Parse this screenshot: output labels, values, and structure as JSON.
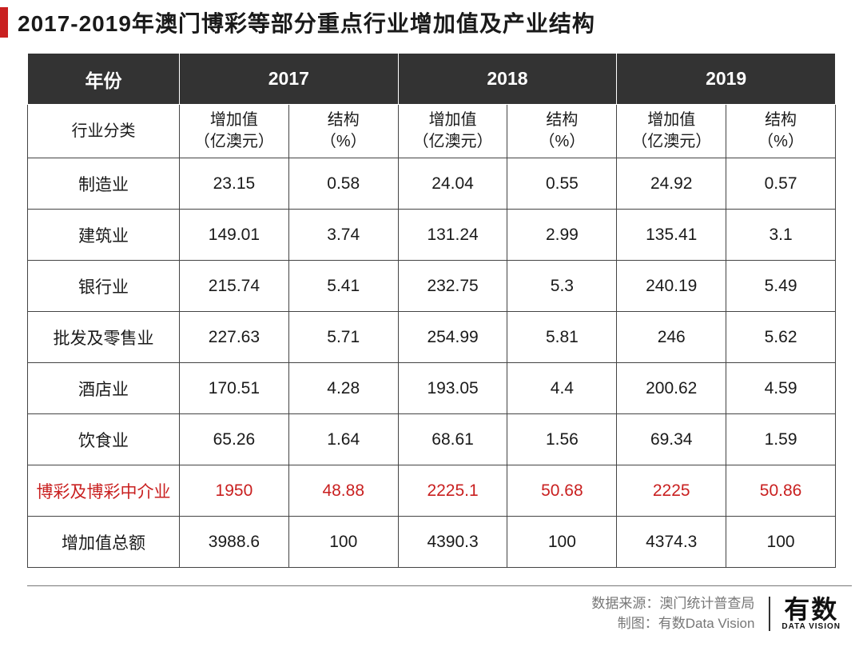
{
  "title": "2017-2019年澳门博彩等部分重点行业增加值及产业结构",
  "table": {
    "type": "table",
    "highlight_row_index": 6,
    "highlight_color": "#c92020",
    "header_bg": "#333333",
    "header_fg": "#ffffff",
    "border_color": "#444444",
    "font_size_body": 21,
    "font_size_header": 23,
    "year_header_label": "年份",
    "years": [
      "2017",
      "2018",
      "2019"
    ],
    "category_header_label": "行业分类",
    "subheaders": {
      "value": "增加值\n（亿澳元）",
      "share": "结构\n（%）"
    },
    "rows": [
      {
        "category": "制造业",
        "cells": [
          "23.15",
          "0.58",
          "24.04",
          "0.55",
          "24.92",
          "0.57"
        ]
      },
      {
        "category": "建筑业",
        "cells": [
          "149.01",
          "3.74",
          "131.24",
          "2.99",
          "135.41",
          "3.1"
        ]
      },
      {
        "category": "银行业",
        "cells": [
          "215.74",
          "5.41",
          "232.75",
          "5.3",
          "240.19",
          "5.49"
        ]
      },
      {
        "category": "批发及零售业",
        "cells": [
          "227.63",
          "5.71",
          "254.99",
          "5.81",
          "246",
          "5.62"
        ]
      },
      {
        "category": "酒店业",
        "cells": [
          "170.51",
          "4.28",
          "193.05",
          "4.4",
          "200.62",
          "4.59"
        ]
      },
      {
        "category": "饮食业",
        "cells": [
          "65.26",
          "1.64",
          "68.61",
          "1.56",
          "69.34",
          "1.59"
        ]
      },
      {
        "category": "博彩及博彩中介业",
        "cells": [
          "1950",
          "48.88",
          "2225.1",
          "50.68",
          "2225",
          "50.86"
        ]
      },
      {
        "category": "增加值总额",
        "cells": [
          "3988.6",
          "100",
          "4390.3",
          "100",
          "4374.3",
          "100"
        ]
      }
    ]
  },
  "footer": {
    "source_label": "数据来源：",
    "source_value": "澳门统计普查局",
    "chart_by_label": "制图：",
    "chart_by_value": "有数Data Vision",
    "brand_cn": "有数",
    "brand_en": "DATA VISION"
  },
  "colors": {
    "accent_red": "#c92020",
    "text_primary": "#1a1a1a",
    "text_muted": "#777777",
    "bg": "#ffffff"
  }
}
